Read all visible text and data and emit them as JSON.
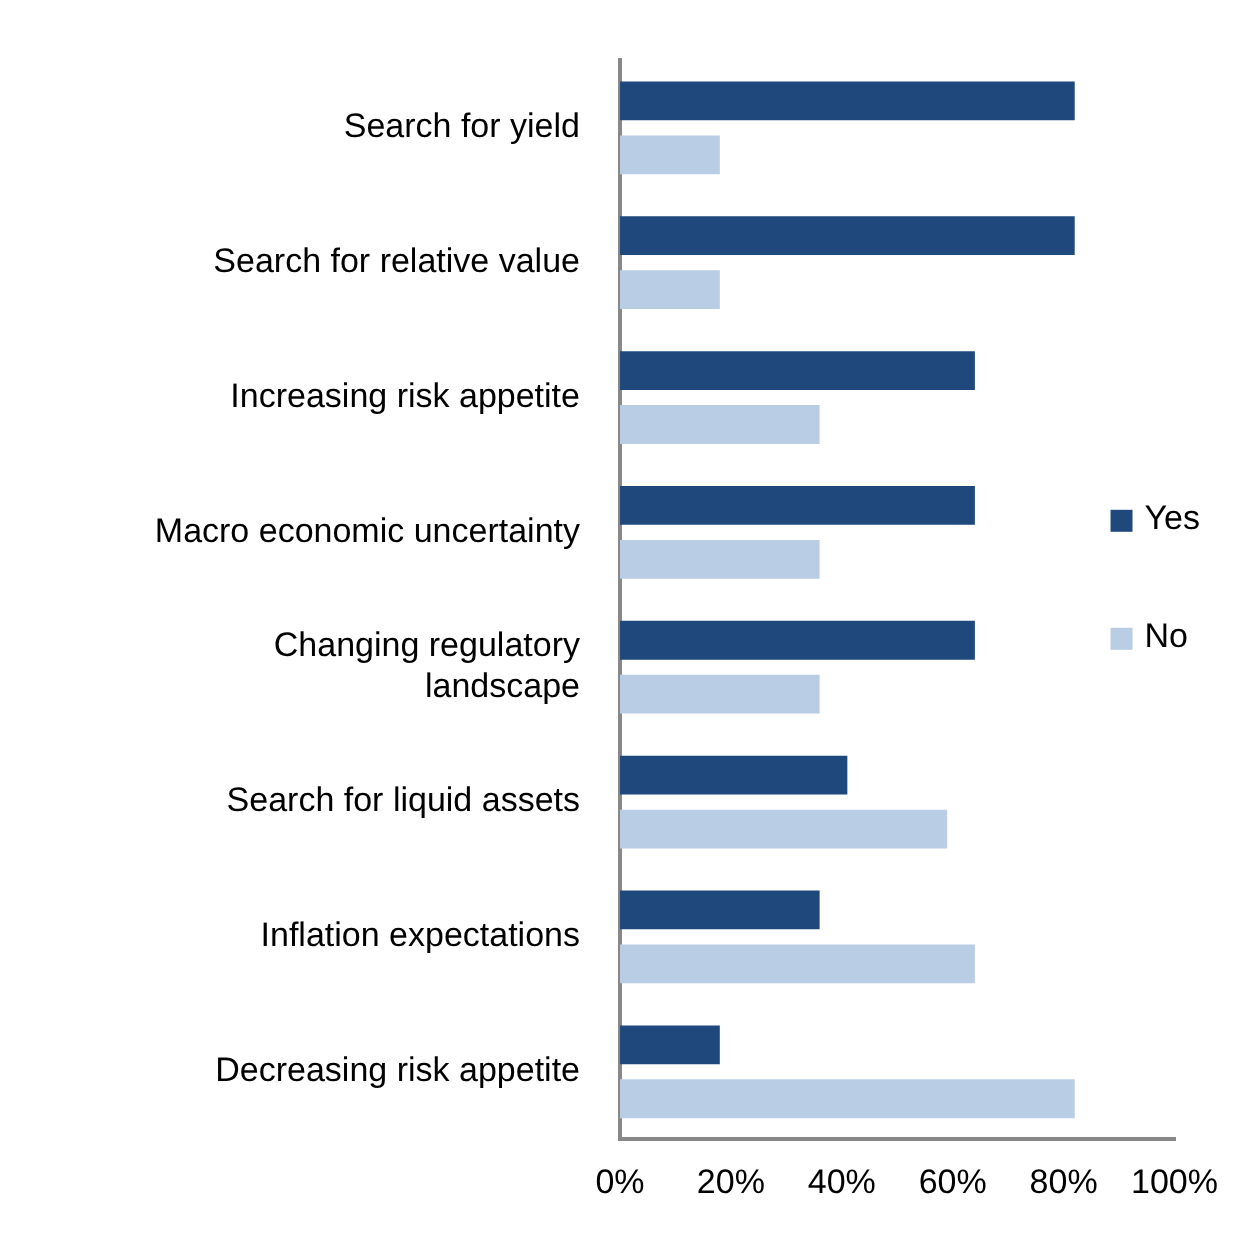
{
  "chart_data": {
    "type": "bar",
    "orientation": "horizontal",
    "categories": [
      "Search for yield",
      "Search for relative value",
      "Increasing risk appetite",
      "Macro economic uncertainty",
      "Changing regulatory landscape",
      "Search for liquid assets",
      "Inflation expectations",
      "Decreasing risk appetite"
    ],
    "series": [
      {
        "name": "Yes",
        "color": "#1f497d",
        "values": [
          82,
          82,
          64,
          64,
          64,
          41,
          36,
          18
        ]
      },
      {
        "name": "No",
        "color": "#b9cde5",
        "values": [
          18,
          18,
          36,
          36,
          36,
          59,
          64,
          82
        ]
      }
    ],
    "xlim": [
      0,
      100
    ],
    "xticks": [
      {
        "value": 0,
        "label": "0%"
      },
      {
        "value": 20,
        "label": "20%"
      },
      {
        "value": 40,
        "label": "40%"
      },
      {
        "value": 60,
        "label": "60%"
      },
      {
        "value": 80,
        "label": "80%"
      },
      {
        "value": 100,
        "label": "100%"
      }
    ],
    "grid": false,
    "legend": "right"
  }
}
